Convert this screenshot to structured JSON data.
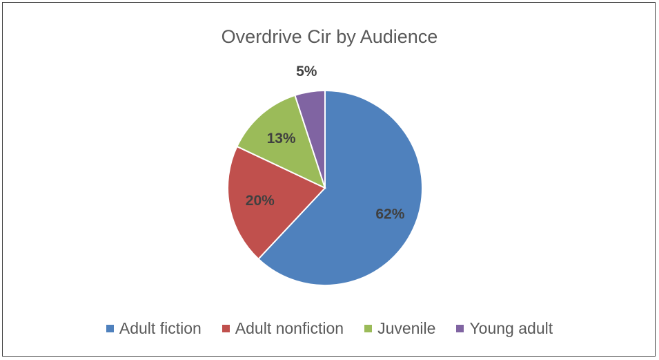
{
  "chart_data": {
    "type": "pie",
    "title": "Overdrive Cir by Audience",
    "categories": [
      "Adult fiction",
      "Adult nonfiction",
      "Juvenile",
      "Young adult"
    ],
    "values": [
      62,
      20,
      13,
      5
    ],
    "data_labels": [
      "62%",
      "20%",
      "13%",
      "5%"
    ],
    "colors": [
      "#4F81BD",
      "#C0504D",
      "#9BBB59",
      "#8064A2"
    ],
    "legend": "bottom"
  }
}
